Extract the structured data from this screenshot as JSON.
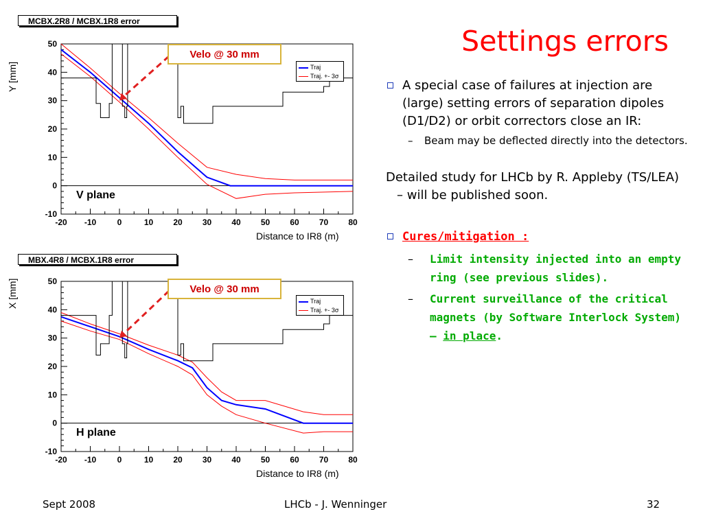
{
  "slide": {
    "title": "Settings errors",
    "bullet1": {
      "text": "A special case of failures at injection are (large) setting errors of separation dipoles (D1/D2) or orbit correctors close an IR:",
      "sub": "Beam may be deflected directly into the detectors."
    },
    "paragraph": "Detailed study for LHCb by R. Appleby (TS/LEA) – will be published soon.",
    "cures": {
      "heading": "Cures/mitigation :",
      "items": [
        "Limit intensity injected into an empty ring (see previous slides).",
        "Current surveillance of the critical magnets (by Software Interlock System) –"
      ],
      "item2_link": "in place",
      "item2_tail": "."
    },
    "dash": "–"
  },
  "footer": {
    "left": "Sept 2008",
    "center": "LHCb - J. Wenninger",
    "right": "32"
  },
  "colors": {
    "title_red": "#ff0000",
    "traj_blue": "#0000ff",
    "band_red": "#ff0000",
    "cure_green": "#00aa00",
    "arrow_red": "#e02020"
  },
  "chart_data": [
    {
      "type": "line",
      "title": "MCBX.2R8 / MCBX.1R8 error",
      "xlabel": "Distance to IR8 (m)",
      "ylabel": "Y [mm]",
      "xlim": [
        -20,
        80
      ],
      "ylim": [
        -10,
        50
      ],
      "xticks": [
        "-20",
        "-10",
        "0",
        "10",
        "20",
        "30",
        "40",
        "50",
        "60",
        "70",
        "80"
      ],
      "yticks": [
        "-10",
        "0",
        "10",
        "20",
        "30",
        "40",
        "50"
      ],
      "plane_label": "V plane",
      "annotation": "Velo @ 30 mm",
      "legend": [
        "Traj",
        "Traj. +- 3σ"
      ],
      "series": [
        {
          "name": "Traj",
          "color": "#0000ff",
          "x": [
            -20,
            -10,
            0,
            10,
            20,
            30,
            38,
            40,
            60,
            80
          ],
          "y": [
            48,
            40,
            31,
            22,
            12,
            3,
            0,
            0,
            0,
            0
          ]
        },
        {
          "name": "Traj. +- 3σ",
          "color": "#ff0000",
          "x": [
            -20,
            -10,
            0,
            10,
            20,
            30,
            40,
            50,
            60,
            80
          ],
          "y": [
            50,
            41.5,
            32.5,
            24,
            15,
            6.5,
            4,
            2.5,
            2,
            2
          ]
        },
        {
          "name": "",
          "color": "#ff0000",
          "x": [
            -20,
            -10,
            0,
            10,
            20,
            30,
            40,
            50,
            60,
            80
          ],
          "y": [
            46.5,
            38.5,
            29.5,
            20,
            10,
            0.5,
            -4.5,
            -3,
            -2.5,
            -2
          ]
        },
        {
          "name": "",
          "color": "#000000",
          "x": [
            -20,
            -8,
            -8,
            -6.5,
            -6.5,
            -3.5,
            -3.5,
            -2.5,
            -2.5,
            1,
            1,
            1.8,
            1.8,
            2.5,
            2.5,
            2.8,
            2.8,
            3.2,
            3.2,
            20,
            20,
            21,
            21,
            22,
            22,
            32,
            32,
            56,
            56,
            70,
            70,
            72,
            72,
            80
          ],
          "y": [
            38,
            38,
            29,
            29,
            24,
            24,
            29,
            29,
            50,
            50,
            28,
            28,
            24,
            24,
            28,
            28,
            50,
            50,
            50,
            50,
            24,
            24,
            28,
            28,
            22,
            22,
            28,
            28,
            33,
            33,
            35,
            35,
            38,
            38
          ]
        }
      ]
    },
    {
      "type": "line",
      "title": "MBX.4R8 / MCBX.1R8 error",
      "xlabel": "Distance to IR8 (m)",
      "ylabel": "X [mm]",
      "xlim": [
        -20,
        80
      ],
      "ylim": [
        -10,
        50
      ],
      "xticks": [
        "-20",
        "-10",
        "0",
        "10",
        "20",
        "30",
        "40",
        "50",
        "60",
        "70",
        "80"
      ],
      "yticks": [
        "-10",
        "0",
        "10",
        "20",
        "30",
        "40",
        "50"
      ],
      "plane_label": "H plane",
      "annotation": "Velo @ 30 mm",
      "legend": [
        "Traj",
        "Traj. +- 3σ"
      ],
      "series": [
        {
          "name": "Traj",
          "color": "#0000ff",
          "x": [
            -20,
            -10,
            0,
            10,
            20,
            25,
            30,
            35,
            40,
            50,
            63,
            70,
            80
          ],
          "y": [
            37.5,
            34,
            30.5,
            26,
            22,
            19.5,
            12.5,
            8,
            6.5,
            5,
            0,
            0,
            0
          ]
        },
        {
          "name": "Traj. +- 3σ",
          "color": "#ff0000",
          "x": [
            -20,
            -10,
            0,
            10,
            20,
            25,
            30,
            35,
            40,
            50,
            63,
            70,
            80
          ],
          "y": [
            39,
            35,
            31.5,
            27.5,
            24,
            21.5,
            16,
            11,
            8,
            8,
            4,
            3,
            3
          ]
        },
        {
          "name": "",
          "color": "#ff0000",
          "x": [
            -20,
            -10,
            0,
            10,
            20,
            25,
            30,
            35,
            40,
            50,
            63,
            70,
            80
          ],
          "y": [
            36,
            32.5,
            29.5,
            24.5,
            20,
            17,
            10,
            6,
            3,
            0,
            -3.5,
            -3,
            -3
          ]
        },
        {
          "name": "",
          "color": "#000000",
          "x": [
            -20,
            -8,
            -8,
            -6.5,
            -6.5,
            -3.5,
            -3.5,
            -2.5,
            -2.5,
            1,
            1,
            1.8,
            1.8,
            2.5,
            2.5,
            2.8,
            2.8,
            3.2,
            3.2,
            20,
            20,
            21,
            21,
            22,
            22,
            32,
            32,
            56,
            56,
            70,
            70,
            72,
            72,
            80
          ],
          "y": [
            38,
            38,
            24,
            24,
            28,
            28,
            38,
            38,
            50,
            50,
            28,
            28,
            23,
            23,
            28,
            28,
            50,
            50,
            50,
            50,
            24,
            24,
            28,
            28,
            22,
            22,
            28,
            28,
            33,
            33,
            35,
            35,
            38,
            38
          ]
        }
      ]
    }
  ]
}
